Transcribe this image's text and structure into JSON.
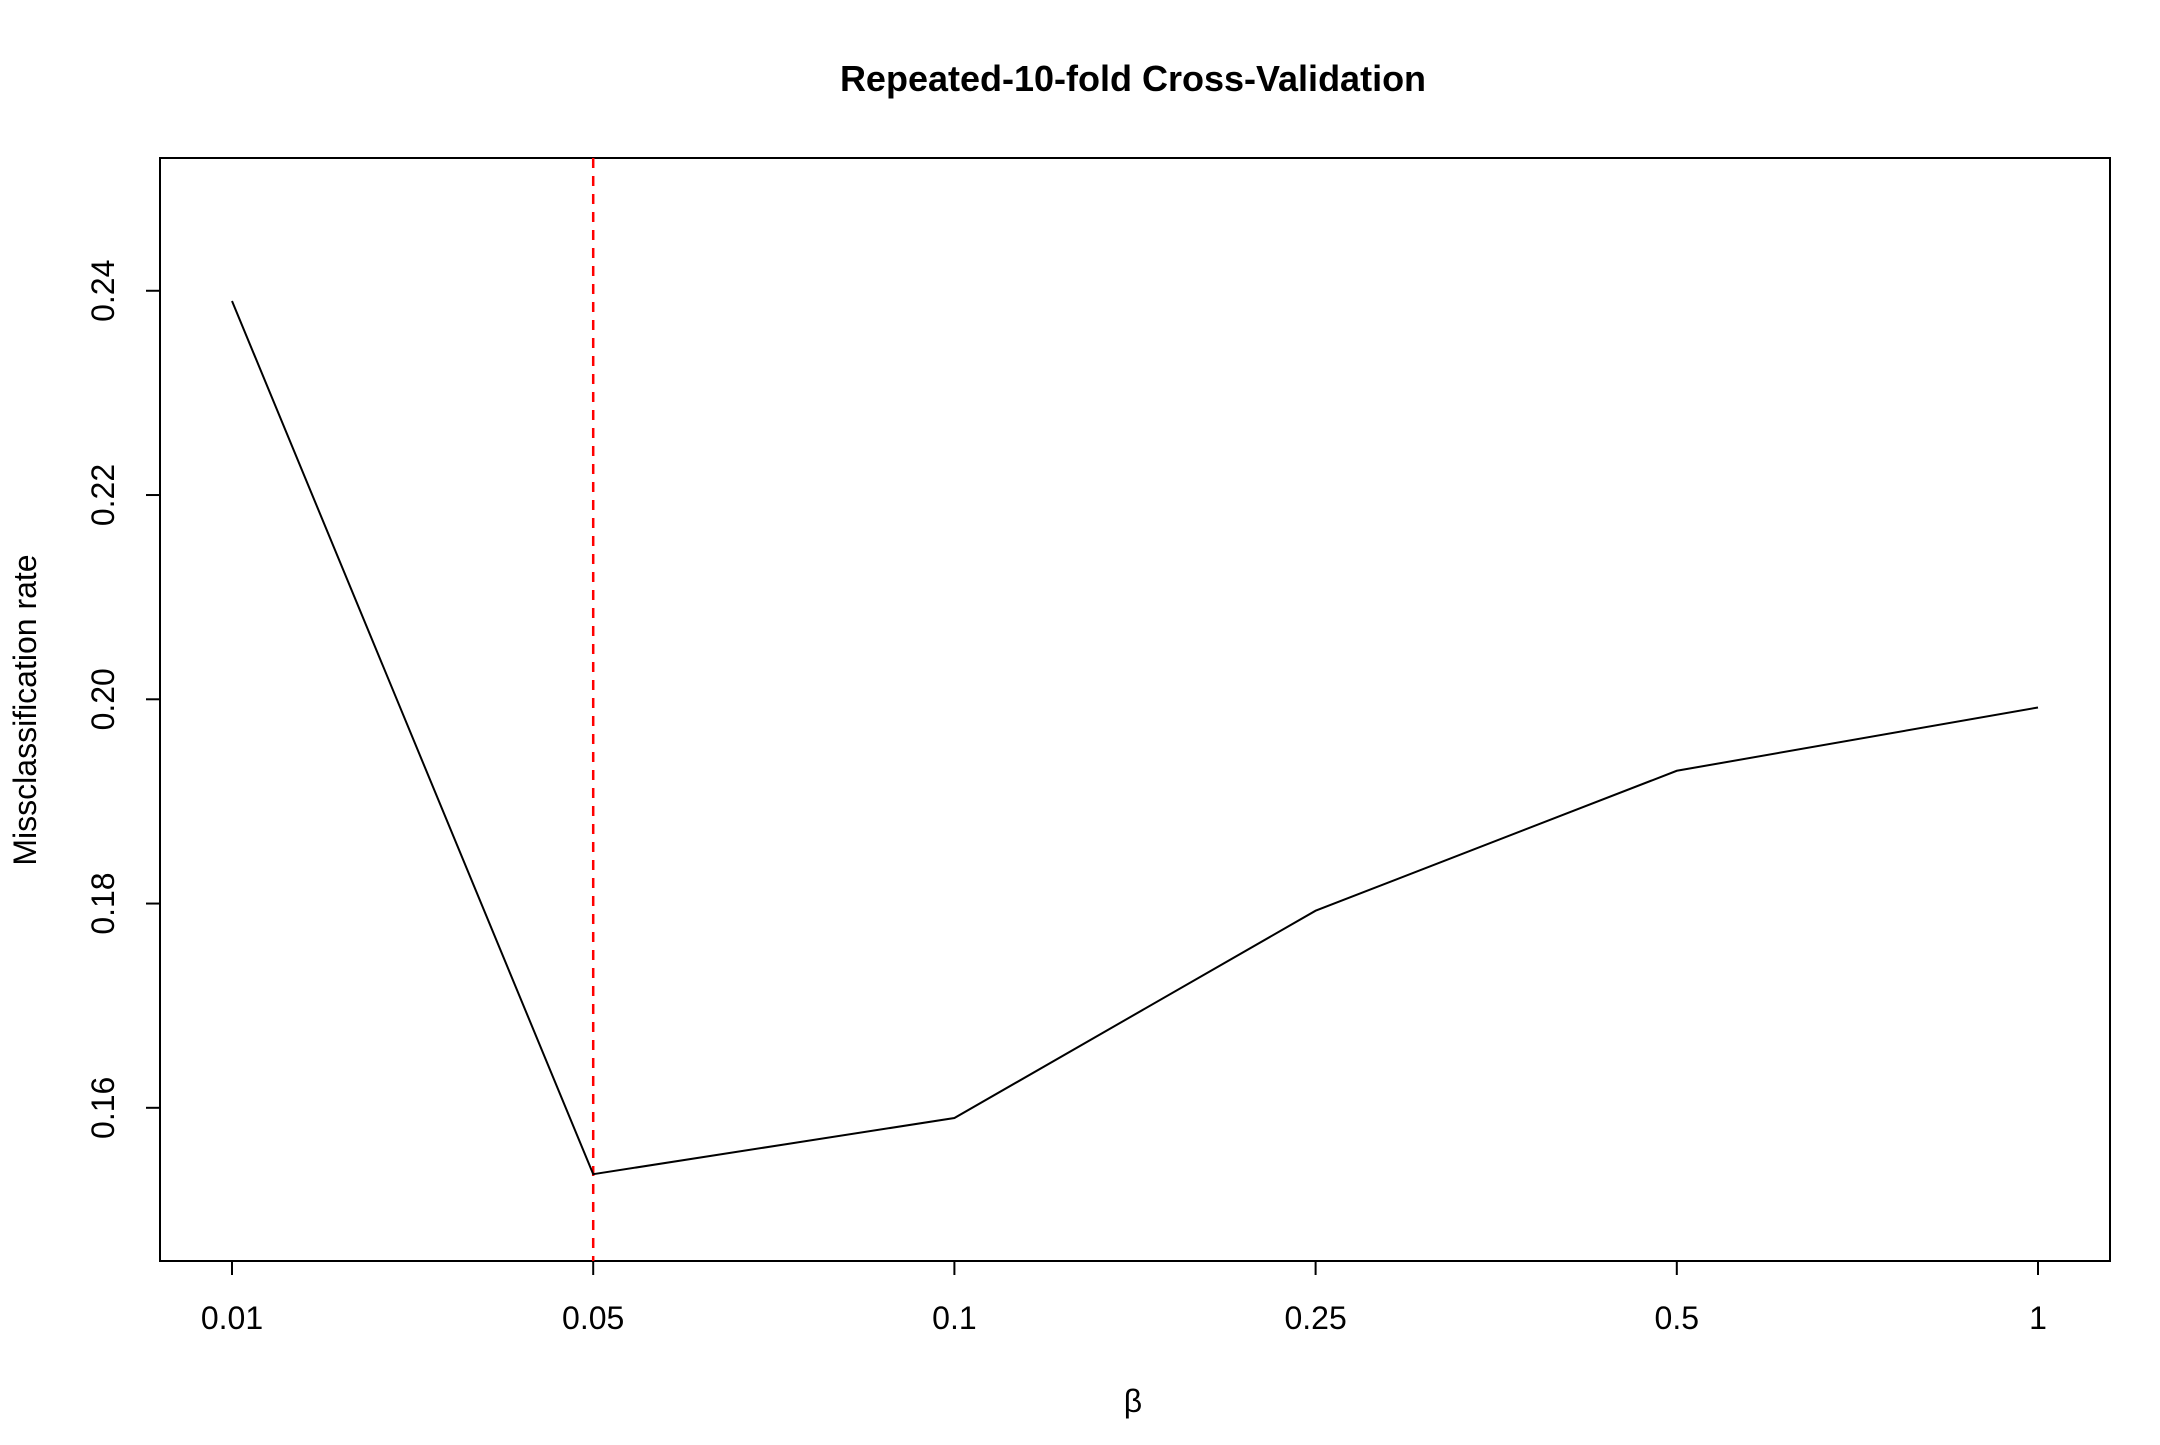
{
  "chart_data": {
    "type": "line",
    "title": "Repeated-10-fold Cross-Validation",
    "xlabel": "β",
    "ylabel": "Missclassification rate",
    "categories": [
      "0.01",
      "0.05",
      "0.1",
      "0.25",
      "0.5",
      "1"
    ],
    "series": [
      {
        "values": [
          0.239,
          0.1535,
          0.159,
          0.1793,
          0.193,
          0.1992
        ]
      }
    ],
    "yticks": [
      "0.16",
      "0.18",
      "0.20",
      "0.22",
      "0.24"
    ],
    "ylim": [
      0.145,
      0.253
    ],
    "vline": {
      "category": "0.05",
      "style": "dashed"
    },
    "grid": false,
    "colors": {
      "line": "#000000",
      "vline": "#ff0000",
      "axes": "#000000"
    }
  }
}
